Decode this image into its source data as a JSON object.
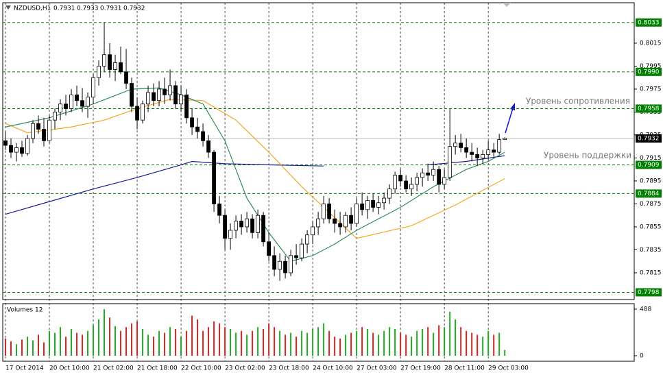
{
  "chart_data": {
    "type": "candlestick",
    "symbol": "NZDUSD,H1",
    "header_ohlc": [
      "0.7931",
      "0.7933",
      "0.7931",
      "0.7932"
    ],
    "ylim": [
      0.77917,
      0.80502
    ],
    "yticks": [
      0.8015,
      {
        "value": 0.7995,
        "label": "0.7995"
      },
      0.7975,
      0.7955,
      0.7935,
      0.7915,
      0.7895,
      0.7875,
      0.7855,
      0.7835,
      0.7815
    ],
    "levels": [
      0.8033,
      {
        "value": 0.799,
        "label": "0.7990"
      },
      0.7958,
      0.7909,
      0.7884,
      0.7798
    ],
    "level_color": "#008000",
    "current_price": 0.7932,
    "xlim": [
      -0.5,
      114.6
    ],
    "xticks": [
      {
        "value": 0,
        "label": "17 Oct 2014"
      },
      {
        "value": 8,
        "label": "20 Oct 10:00"
      },
      {
        "value": 16,
        "label": "21 Oct 02:00"
      },
      {
        "value": 24,
        "label": "21 Oct 18:00"
      },
      {
        "value": 32,
        "label": "22 Oct 10:00"
      },
      {
        "value": 40,
        "label": "23 Oct 02:00"
      },
      {
        "value": 48,
        "label": "23 Oct 18:00"
      },
      {
        "value": 56,
        "label": "24 Oct 10:00"
      },
      {
        "value": 64,
        "label": "27 Oct 03:00"
      },
      {
        "value": 72,
        "label": "27 Oct 19:00"
      },
      {
        "value": 80,
        "label": "28 Oct 11:00"
      },
      {
        "value": 88,
        "label": "29 Oct 03:00"
      }
    ],
    "up_color": "#ffffff",
    "down_color": "#000000",
    "candles": [
      [
        0.793,
        0.7938,
        0.7922,
        0.7926
      ],
      [
        0.7926,
        0.7932,
        0.7915,
        0.792
      ],
      [
        0.792,
        0.7928,
        0.7912,
        0.7924
      ],
      [
        0.7924,
        0.793,
        0.7916,
        0.7919
      ],
      [
        0.7919,
        0.7935,
        0.7917,
        0.7932
      ],
      [
        0.7932,
        0.7948,
        0.7928,
        0.7945
      ],
      [
        0.7945,
        0.7952,
        0.7936,
        0.794
      ],
      [
        0.794,
        0.795,
        0.7925,
        0.793
      ],
      [
        0.793,
        0.7952,
        0.7928,
        0.7948
      ],
      [
        0.7948,
        0.7958,
        0.794,
        0.7955
      ],
      [
        0.7955,
        0.7966,
        0.7948,
        0.7962
      ],
      [
        0.7962,
        0.797,
        0.7952,
        0.7958
      ],
      [
        0.7958,
        0.7975,
        0.7955,
        0.797
      ],
      [
        0.797,
        0.7978,
        0.796,
        0.7965
      ],
      [
        0.7965,
        0.7976,
        0.7955,
        0.796
      ],
      [
        0.796,
        0.7972,
        0.795,
        0.7968
      ],
      [
        0.7968,
        0.7988,
        0.7962,
        0.7985
      ],
      [
        0.7985,
        0.8,
        0.7978,
        0.7995
      ],
      [
        0.7995,
        0.8033,
        0.799,
        0.8005
      ],
      [
        0.8005,
        0.8015,
        0.7985,
        0.7992
      ],
      [
        0.7992,
        0.8005,
        0.7982,
        0.7998
      ],
      [
        0.7998,
        0.8012,
        0.7988,
        0.799
      ],
      [
        0.799,
        0.801,
        0.7975,
        0.798
      ],
      [
        0.798,
        0.7985,
        0.7955,
        0.796
      ],
      [
        0.796,
        0.7968,
        0.794,
        0.7948
      ],
      [
        0.7948,
        0.7965,
        0.7945,
        0.7962
      ],
      [
        0.7962,
        0.7978,
        0.7955,
        0.7972
      ],
      [
        0.7972,
        0.798,
        0.796,
        0.7965
      ],
      [
        0.7965,
        0.7982,
        0.796,
        0.7975
      ],
      [
        0.7975,
        0.7985,
        0.7962,
        0.797
      ],
      [
        0.797,
        0.7992,
        0.7965,
        0.7978
      ],
      [
        0.7978,
        0.7982,
        0.7958,
        0.7962
      ],
      [
        0.7962,
        0.7978,
        0.7955,
        0.797
      ],
      [
        0.797,
        0.7975,
        0.7945,
        0.795
      ],
      [
        0.795,
        0.7958,
        0.7935,
        0.7942
      ],
      [
        0.7942,
        0.795,
        0.7932,
        0.7938
      ],
      [
        0.7938,
        0.7945,
        0.7925,
        0.793
      ],
      [
        0.793,
        0.7935,
        0.7915,
        0.792
      ],
      [
        0.792,
        0.7922,
        0.7868,
        0.7875
      ],
      [
        0.7875,
        0.7882,
        0.7858,
        0.7865
      ],
      [
        0.7865,
        0.787,
        0.7835,
        0.7845
      ],
      [
        0.7845,
        0.7858,
        0.7835,
        0.7852
      ],
      [
        0.7852,
        0.7865,
        0.7845,
        0.786
      ],
      [
        0.786,
        0.7866,
        0.7848,
        0.7855
      ],
      [
        0.7855,
        0.7868,
        0.785,
        0.7862
      ],
      [
        0.7862,
        0.7866,
        0.7845,
        0.785
      ],
      [
        0.785,
        0.787,
        0.7845,
        0.7865
      ],
      [
        0.7865,
        0.7868,
        0.7838,
        0.7842
      ],
      [
        0.7842,
        0.785,
        0.7825,
        0.783
      ],
      [
        0.783,
        0.7838,
        0.7812,
        0.7818
      ],
      [
        0.7818,
        0.7832,
        0.7808,
        0.7825
      ],
      [
        0.7825,
        0.783,
        0.781,
        0.7815
      ],
      [
        0.7815,
        0.7835,
        0.7812,
        0.783
      ],
      [
        0.783,
        0.784,
        0.7822,
        0.7828
      ],
      [
        0.7828,
        0.7845,
        0.7825,
        0.784
      ],
      [
        0.784,
        0.7852,
        0.7832,
        0.7848
      ],
      [
        0.7848,
        0.786,
        0.784,
        0.7855
      ],
      [
        0.7855,
        0.7868,
        0.7848,
        0.7862
      ],
      [
        0.7862,
        0.7882,
        0.7858,
        0.7875
      ],
      [
        0.7875,
        0.788,
        0.7858,
        0.7862
      ],
      [
        0.7862,
        0.787,
        0.785,
        0.7858
      ],
      [
        0.7858,
        0.7868,
        0.7848,
        0.7855
      ],
      [
        0.7855,
        0.7868,
        0.785,
        0.7865
      ],
      [
        0.7865,
        0.7872,
        0.7852,
        0.7858
      ],
      [
        0.7858,
        0.788,
        0.7855,
        0.7875
      ],
      [
        0.7875,
        0.7885,
        0.7865,
        0.787
      ],
      [
        0.787,
        0.7882,
        0.7862,
        0.7878
      ],
      [
        0.7878,
        0.7884,
        0.7868,
        0.7872
      ],
      [
        0.7872,
        0.7882,
        0.7866,
        0.7876
      ],
      [
        0.7876,
        0.7885,
        0.787,
        0.788
      ],
      [
        0.788,
        0.7892,
        0.7875,
        0.7888
      ],
      [
        0.7888,
        0.7903,
        0.7884,
        0.79
      ],
      [
        0.79,
        0.7905,
        0.789,
        0.7895
      ],
      [
        0.7895,
        0.79,
        0.7885,
        0.7888
      ],
      [
        0.7888,
        0.7898,
        0.7882,
        0.7892
      ],
      [
        0.7892,
        0.7902,
        0.7886,
        0.7898
      ],
      [
        0.7898,
        0.7906,
        0.789,
        0.7902
      ],
      [
        0.7902,
        0.791,
        0.7895,
        0.79
      ],
      [
        0.79,
        0.7912,
        0.7895,
        0.7905
      ],
      [
        0.7905,
        0.7908,
        0.7885,
        0.7892
      ],
      [
        0.7892,
        0.7905,
        0.7888,
        0.7898
      ],
      [
        0.7898,
        0.7958,
        0.7895,
        0.7925
      ],
      [
        0.7925,
        0.7935,
        0.7918,
        0.7928
      ],
      [
        0.7928,
        0.7936,
        0.792,
        0.7924
      ],
      [
        0.7924,
        0.7932,
        0.7915,
        0.792
      ],
      [
        0.792,
        0.7928,
        0.7912,
        0.7918
      ],
      [
        0.7918,
        0.7924,
        0.7908,
        0.7915
      ],
      [
        0.7915,
        0.7922,
        0.791,
        0.7918
      ],
      [
        0.7918,
        0.793,
        0.7914,
        0.7922
      ],
      [
        0.7922,
        0.7928,
        0.7916,
        0.792
      ],
      [
        0.792,
        0.7936,
        0.7918,
        0.7931
      ],
      [
        0.7931,
        0.7933,
        0.7931,
        0.7932
      ]
    ],
    "moving_averages": [
      {
        "color": "#1a1a9c",
        "x": [
          0,
          8,
          16,
          24,
          32,
          34,
          40,
          48,
          58,
          60,
          77,
          84,
          91
        ],
        "values": [
          0.7866,
          0.7877,
          0.7888,
          0.7898,
          0.7909,
          0.7912,
          0.791,
          0.7909,
          0.7908,
          null,
          0.7909,
          0.7912,
          0.7917
        ]
      },
      {
        "color": "#f5a623",
        "x": [
          0,
          4,
          12,
          18,
          24,
          30,
          36,
          42,
          48,
          54,
          58,
          64,
          74,
          82,
          91
        ],
        "values": [
          0.7945,
          0.7937,
          0.7942,
          0.7948,
          0.7958,
          0.7966,
          0.7965,
          0.7948,
          0.792,
          0.789,
          0.7872,
          0.7845,
          0.7856,
          0.7874,
          0.7897
        ]
      },
      {
        "color": "#2e8b57",
        "x": [
          0,
          8,
          16,
          23,
          28,
          32,
          36,
          40,
          44,
          48,
          52,
          56,
          60,
          64,
          68,
          72,
          78,
          84,
          88,
          91
        ],
        "values": [
          0.7942,
          0.795,
          0.7962,
          0.7975,
          0.7976,
          0.797,
          0.7962,
          0.793,
          0.788,
          0.785,
          0.7825,
          0.783,
          0.784,
          0.7852,
          0.7862,
          0.7872,
          0.789,
          0.7905,
          0.7912,
          0.792
        ]
      }
    ],
    "annotations": [
      "Уровень сопротивления",
      "Уровень поддержки"
    ],
    "volume_title": "Volumes 12",
    "volume_ylim": [
      0,
      488
    ],
    "volume_yticks": [
      488,
      0
    ],
    "volume_up_color": "#22aa22",
    "volume_down_color": "#dd2222",
    "volumes": [
      180,
      150,
      120,
      170,
      200,
      160,
      220,
      140,
      260,
      240,
      300,
      200,
      280,
      240,
      220,
      260,
      320,
      380,
      488,
      400,
      310,
      260,
      300,
      340,
      360,
      280,
      220,
      200,
      260,
      240,
      300,
      280,
      200,
      260,
      420,
      380,
      260,
      300,
      360,
      340,
      300,
      280,
      240,
      260,
      220,
      260,
      300,
      280,
      340,
      300,
      260,
      220,
      240,
      200,
      260,
      240,
      280,
      300,
      340,
      260,
      200,
      180,
      220,
      240,
      260,
      300,
      280,
      240,
      220,
      260,
      300,
      280,
      240,
      220,
      200,
      260,
      280,
      300,
      240,
      320,
      300,
      460,
      380,
      300,
      260,
      240,
      220,
      200,
      260,
      220,
      240,
      60
    ]
  }
}
